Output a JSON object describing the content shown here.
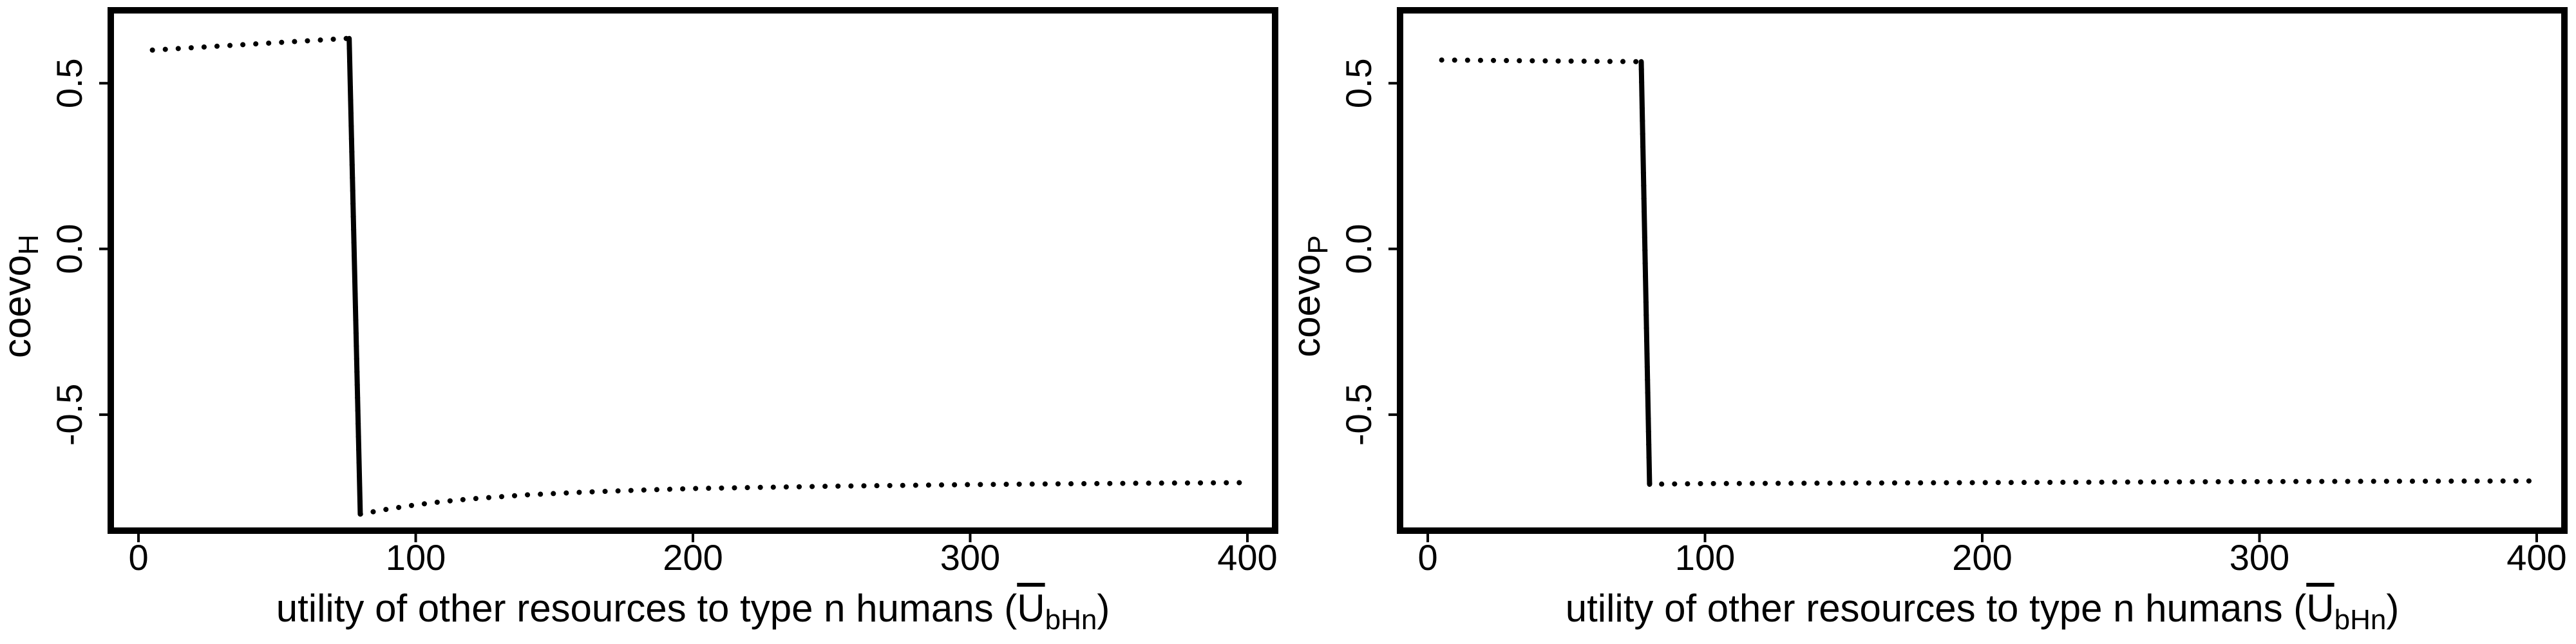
{
  "chart_data": [
    {
      "type": "scatter",
      "panel": "left",
      "xlabel": {
        "main": "utility of other resources to type n humans (",
        "symbol": "U",
        "subscript": "bHn",
        "close": ")"
      },
      "ylabel": {
        "main": "coevo",
        "subscript": "H"
      },
      "xlim": [
        -10,
        410
      ],
      "ylim": [
        -0.85,
        0.72
      ],
      "xticks": [
        0,
        100,
        200,
        300,
        400
      ],
      "yticks": [
        -0.5,
        0.0,
        0.5
      ],
      "xtick_labels": [
        "0",
        "100",
        "200",
        "300",
        "400"
      ],
      "ytick_labels": [
        "-0.5",
        "0.0",
        "0.5"
      ],
      "series_points": [
        [
          5,
          0.6
        ],
        [
          75,
          0.635
        ],
        [
          76,
          0.635
        ],
        [
          80,
          -0.8
        ],
        [
          90,
          -0.785
        ],
        [
          100,
          -0.772
        ],
        [
          110,
          -0.762
        ],
        [
          120,
          -0.754
        ],
        [
          140,
          -0.742
        ],
        [
          160,
          -0.734
        ],
        [
          180,
          -0.728
        ],
        [
          200,
          -0.723
        ],
        [
          220,
          -0.72
        ],
        [
          250,
          -0.716
        ],
        [
          280,
          -0.713
        ],
        [
          300,
          -0.711
        ],
        [
          330,
          -0.709
        ],
        [
          360,
          -0.707
        ],
        [
          400,
          -0.705
        ]
      ]
    },
    {
      "type": "scatter",
      "panel": "right",
      "xlabel": {
        "main": "utility of other resources to type n humans (",
        "symbol": "U",
        "subscript": "bHn",
        "close": ")"
      },
      "ylabel": {
        "main": "coevo",
        "subscript": "P"
      },
      "xlim": [
        -10,
        410
      ],
      "ylim": [
        -0.85,
        0.72
      ],
      "xticks": [
        0,
        100,
        200,
        300,
        400
      ],
      "yticks": [
        -0.5,
        0.0,
        0.5
      ],
      "xtick_labels": [
        "0",
        "100",
        "200",
        "300",
        "400"
      ],
      "ytick_labels": [
        "-0.5",
        "0.0",
        "0.5"
      ],
      "series_points": [
        [
          5,
          0.57
        ],
        [
          77,
          0.565
        ],
        [
          80,
          -0.71
        ],
        [
          100,
          -0.708
        ],
        [
          200,
          -0.705
        ],
        [
          300,
          -0.702
        ],
        [
          400,
          -0.7
        ]
      ]
    }
  ]
}
